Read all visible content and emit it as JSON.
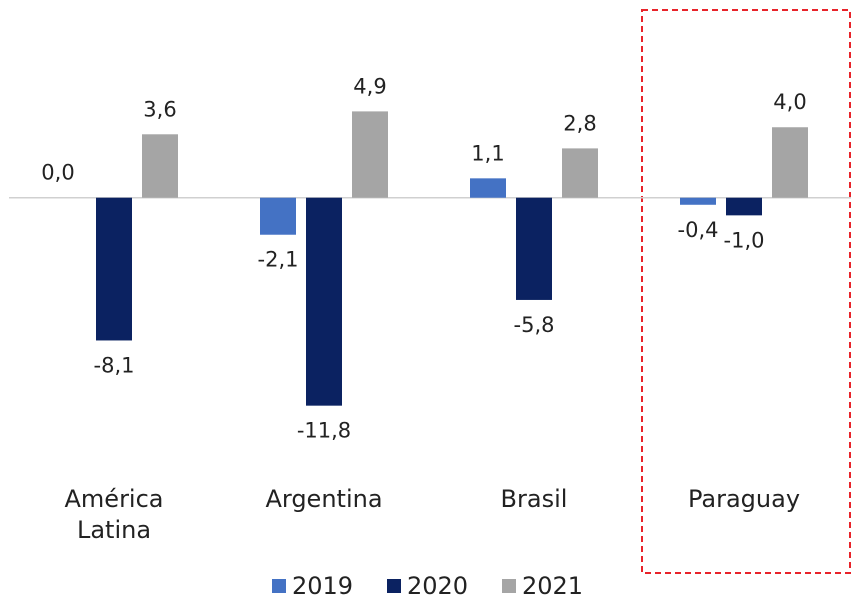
{
  "chart_data": {
    "type": "bar",
    "categories": [
      "América Latina",
      "Argentina",
      "Brasil",
      "Paraguay"
    ],
    "series": [
      {
        "name": "2019",
        "color": "#4472c4",
        "values": [
          0.0,
          -2.1,
          1.1,
          -0.4
        ],
        "value_labels": [
          "0,0",
          "-2,1",
          "1,1",
          "-0,4"
        ]
      },
      {
        "name": "2020",
        "color": "#0b2261",
        "values": [
          -8.1,
          -11.8,
          -5.8,
          -1.0
        ],
        "value_labels": [
          "-8,1",
          "-11,8",
          "-5,8",
          "-1,0"
        ]
      },
      {
        "name": "2021",
        "color": "#a5a5a5",
        "values": [
          3.6,
          4.9,
          2.8,
          4.0
        ],
        "value_labels": [
          "3,6",
          "4,9",
          "2,8",
          "4,0"
        ]
      }
    ],
    "ylim": [
      -12.5,
      6
    ],
    "grid": false
  }
}
